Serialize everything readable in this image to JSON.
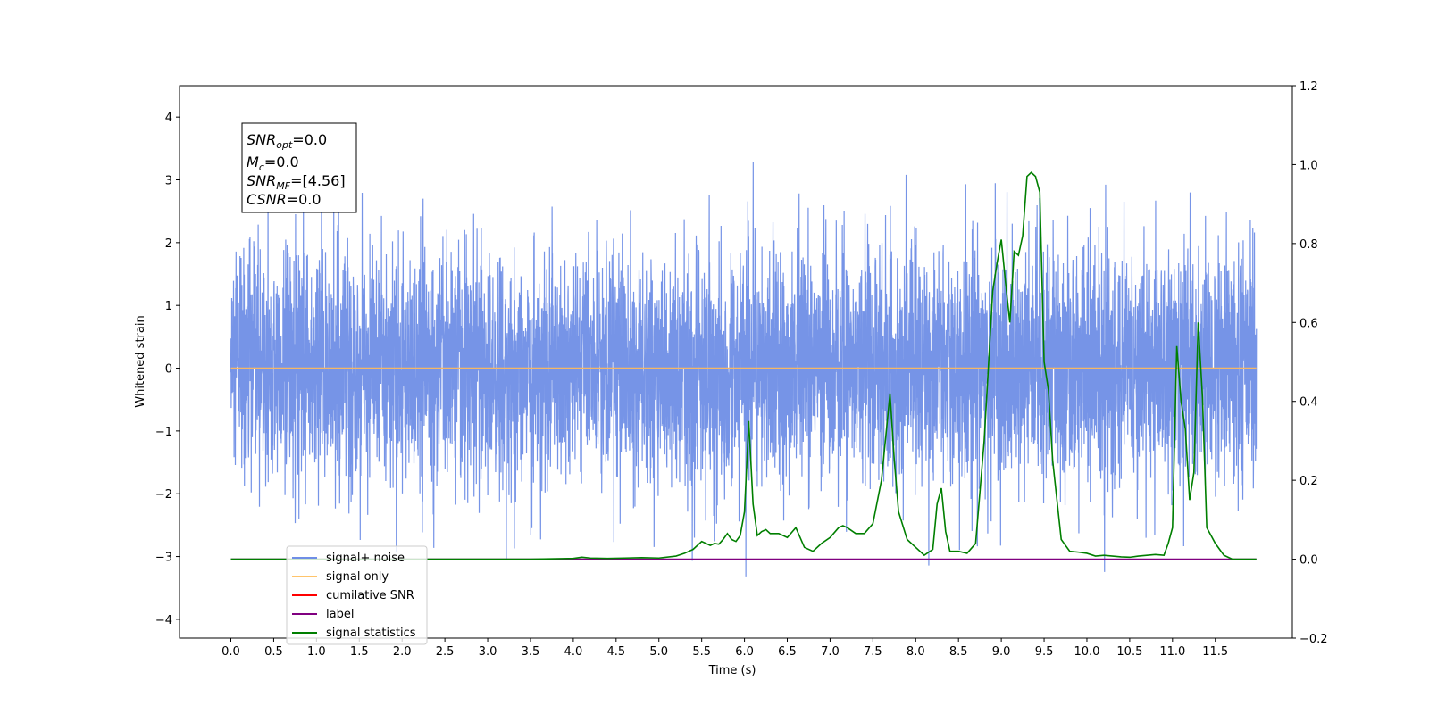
{
  "chart_data": {
    "type": "line",
    "xlabel": "Time (s)",
    "ylabel": "Whitened strain",
    "xlim": [
      -0.6,
      12.4
    ],
    "ylim": [
      -4.3,
      4.5
    ],
    "y2lim": [
      -0.2,
      1.2
    ],
    "x_ticks": [
      "0.0",
      "0.5",
      "1.0",
      "1.5",
      "2.0",
      "2.5",
      "3.0",
      "3.5",
      "4.0",
      "4.5",
      "5.0",
      "5.5",
      "6.0",
      "6.5",
      "7.0",
      "7.5",
      "8.0",
      "8.5",
      "9.0",
      "9.5",
      "10.0",
      "10.5",
      "11.0",
      "11.5"
    ],
    "y_ticks": [
      "4",
      "3",
      "2",
      "1",
      "0",
      "−1",
      "−2",
      "−3",
      "−4"
    ],
    "y2_ticks": [
      "1.2",
      "1.0",
      "0.8",
      "0.6",
      "0.4",
      "0.2",
      "0.0",
      "−0.2"
    ],
    "annotation": {
      "lines": [
        {
          "base": "SNR",
          "sub": "opt",
          "value": "=0.0"
        },
        {
          "base": "M",
          "sub": "c",
          "value": "=0.0"
        },
        {
          "base": "SNR",
          "sub": "MF",
          "value": "=[4.56]"
        },
        {
          "base": "CSNR",
          "sub": "",
          "value": "=0.0"
        }
      ]
    },
    "legend": {
      "placement": "lower-left",
      "entries": [
        {
          "label": "signal+ noise",
          "color": "#6f8ee6"
        },
        {
          "label": "signal only",
          "color": "#ffc46b"
        },
        {
          "label": "cumilative SNR",
          "color": "#ff0000"
        },
        {
          "label": "label",
          "color": "#800080"
        },
        {
          "label": "signal statistics",
          "color": "#007f00"
        }
      ]
    },
    "series": [
      {
        "name": "signal+ noise",
        "axis": "left",
        "color": "#6f8ee6",
        "noise": {
          "x_start": 0.0,
          "x_end": 11.98,
          "sigma": 0.95,
          "max_abs": 4.1,
          "seed": 12345
        }
      },
      {
        "name": "signal only",
        "axis": "left",
        "color": "#f5b766",
        "x": [
          0.0,
          11.98
        ],
        "y": [
          0.0,
          0.0
        ]
      },
      {
        "name": "label",
        "axis": "right",
        "color": "#800080",
        "x": [
          0.0,
          11.98
        ],
        "y": [
          0.0,
          0.0
        ]
      },
      {
        "name": "signal statistics",
        "axis": "right",
        "color": "#007f00",
        "x": [
          0.0,
          3.5,
          4.0,
          4.1,
          4.2,
          4.4,
          4.6,
          4.8,
          5.0,
          5.2,
          5.3,
          5.4,
          5.5,
          5.55,
          5.6,
          5.65,
          5.7,
          5.75,
          5.8,
          5.85,
          5.9,
          5.95,
          6.0,
          6.05,
          6.1,
          6.15,
          6.2,
          6.25,
          6.3,
          6.4,
          6.5,
          6.6,
          6.7,
          6.8,
          6.9,
          7.0,
          7.1,
          7.15,
          7.2,
          7.3,
          7.4,
          7.5,
          7.6,
          7.7,
          7.75,
          7.8,
          7.9,
          8.0,
          8.1,
          8.2,
          8.25,
          8.3,
          8.35,
          8.4,
          8.5,
          8.6,
          8.7,
          8.8,
          8.9,
          8.95,
          9.0,
          9.05,
          9.1,
          9.15,
          9.2,
          9.25,
          9.3,
          9.35,
          9.4,
          9.45,
          9.5,
          9.55,
          9.6,
          9.7,
          9.8,
          9.9,
          10.0,
          10.1,
          10.2,
          10.3,
          10.4,
          10.5,
          10.6,
          10.7,
          10.8,
          10.9,
          10.95,
          11.0,
          11.05,
          11.1,
          11.15,
          11.2,
          11.25,
          11.3,
          11.35,
          11.4,
          11.45,
          11.5,
          11.6,
          11.7,
          11.75,
          11.98
        ],
        "y": [
          0.0,
          0.0,
          0.002,
          0.005,
          0.003,
          0.002,
          0.003,
          0.004,
          0.003,
          0.008,
          0.015,
          0.025,
          0.045,
          0.04,
          0.035,
          0.04,
          0.038,
          0.05,
          0.065,
          0.05,
          0.045,
          0.06,
          0.12,
          0.35,
          0.14,
          0.06,
          0.07,
          0.075,
          0.065,
          0.065,
          0.055,
          0.08,
          0.03,
          0.02,
          0.04,
          0.055,
          0.08,
          0.085,
          0.08,
          0.065,
          0.065,
          0.09,
          0.2,
          0.42,
          0.25,
          0.12,
          0.05,
          0.03,
          0.01,
          0.025,
          0.14,
          0.18,
          0.07,
          0.02,
          0.02,
          0.015,
          0.04,
          0.3,
          0.68,
          0.75,
          0.81,
          0.7,
          0.6,
          0.78,
          0.77,
          0.82,
          0.97,
          0.98,
          0.97,
          0.93,
          0.5,
          0.43,
          0.25,
          0.05,
          0.02,
          0.018,
          0.015,
          0.008,
          0.01,
          0.008,
          0.006,
          0.005,
          0.008,
          0.01,
          0.012,
          0.01,
          0.04,
          0.08,
          0.54,
          0.4,
          0.33,
          0.15,
          0.22,
          0.6,
          0.41,
          0.08,
          0.06,
          0.04,
          0.01,
          0.0,
          0.0,
          0.0
        ]
      }
    ]
  }
}
